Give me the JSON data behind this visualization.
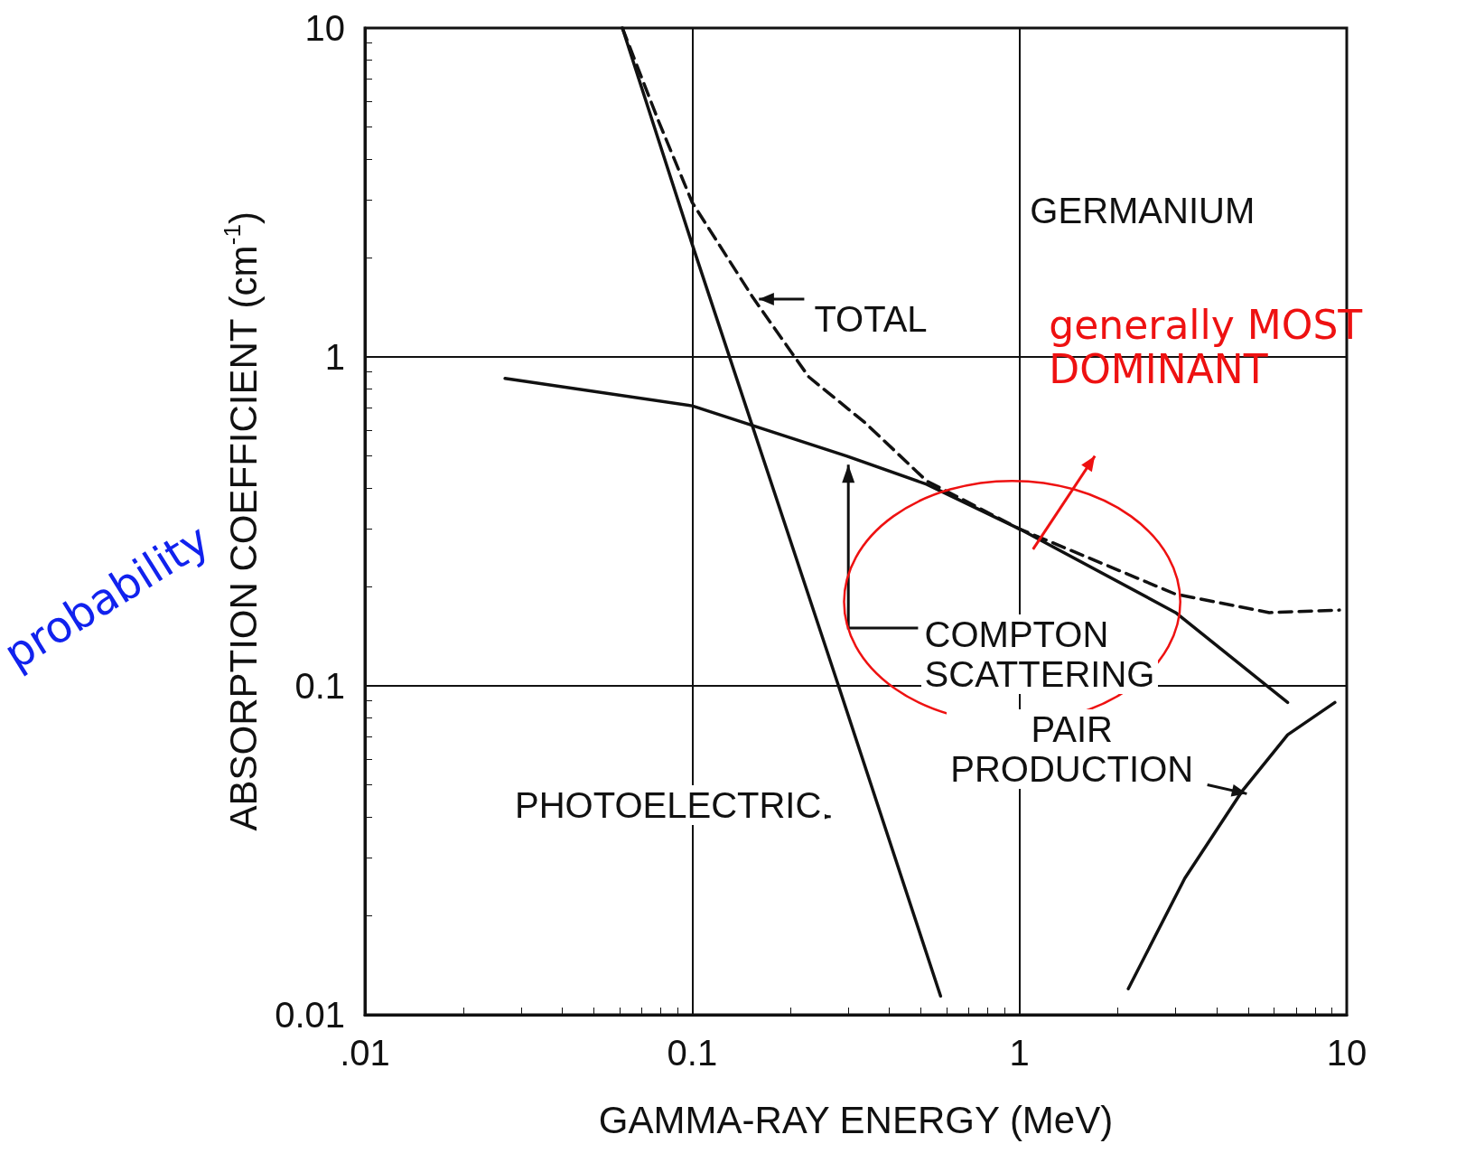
{
  "chart_data": {
    "type": "line",
    "xlabel": "GAMMA-RAY ENERGY (MeV)",
    "ylabel": "ABSORPTION COEFFICIENT (cm$^{-1}$)",
    "log": "xy",
    "grid": true,
    "marker": "none",
    "xlim": [
      0.01,
      10
    ],
    "xticks": [
      {
        "value": 0.01,
        "label": ".01"
      },
      0.1,
      1,
      10
    ],
    "ylim": [
      0.01,
      10
    ],
    "yticks": [
      0.01,
      0.1,
      1,
      10
    ],
    "annotations": [
      "TOTAL",
      "GERMANIUM",
      "COMPTON SCATTERING",
      "PAIR PRODUCTION",
      "PHOTOELECTRIC",
      "generally MOST DOMINANT",
      "probability"
    ],
    "series": [
      {
        "color": "#111111",
        "line_style": "solid",
        "x": [
          0.0612,
          0.1,
          0.28,
          0.574
        ],
        "values": [
          10,
          2.2,
          0.1,
          0.0114
        ]
      },
      {
        "color": "#111111",
        "line_style": "solid",
        "x": [
          0.0268,
          0.1,
          0.296,
          0.52,
          1,
          3.0,
          6.6
        ],
        "values": [
          0.86,
          0.71,
          0.5,
          0.41,
          0.3,
          0.167,
          0.089
        ]
      },
      {
        "color": "#111111",
        "line_style": "dashed",
        "x": [
          0.0612,
          0.079,
          0.1,
          0.153,
          0.227,
          0.338,
          0.52,
          1,
          3.0,
          5.8,
          9.5
        ],
        "values": [
          10,
          5.2,
          2.95,
          1.52,
          0.87,
          0.63,
          0.42,
          0.3,
          0.19,
          0.167,
          0.17
        ]
      },
      {
        "color": "#111111",
        "line_style": "solid",
        "x": [
          2.15,
          3.2,
          4.8,
          6.6,
          9.2
        ],
        "values": [
          0.012,
          0.026,
          0.048,
          0.071,
          0.089
        ]
      }
    ]
  }
}
